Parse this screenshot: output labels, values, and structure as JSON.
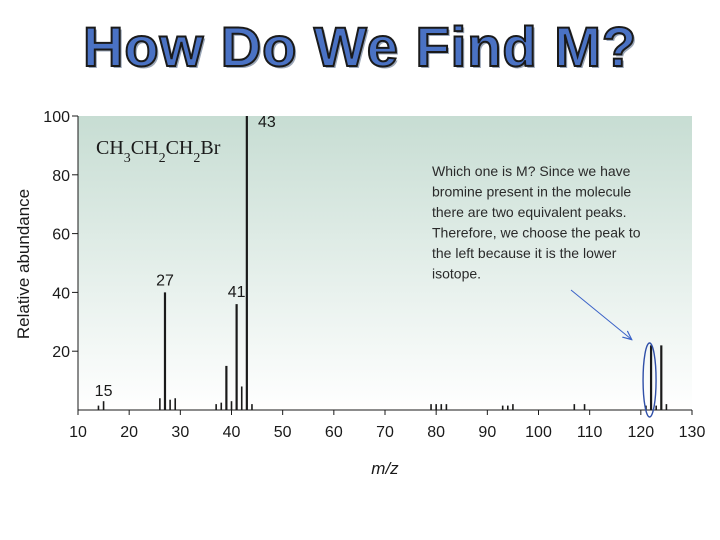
{
  "slide": {
    "title": "How Do We Find M?"
  },
  "colors": {
    "title": "#4a72c4",
    "plot_bg_top": "#c7ddd3",
    "plot_bg_bottom": "#ffffff",
    "bars": "#1a1a1a",
    "arrow": "#3a62c8",
    "highlight_ellipse": "#2f4fa8"
  },
  "chart_data": {
    "type": "bar",
    "title": "",
    "xlabel": "m/z",
    "ylabel": "Relative abundance",
    "xlim": [
      10,
      130
    ],
    "ylim": [
      0,
      100
    ],
    "xticks": [
      10,
      20,
      30,
      40,
      50,
      60,
      70,
      80,
      90,
      100,
      110,
      120,
      130
    ],
    "yticks": [
      20,
      40,
      60,
      80,
      100
    ],
    "grid": false,
    "compound_formula": "CH3CH2CH2Br",
    "peaks": [
      {
        "x": 14,
        "y": 1.5
      },
      {
        "x": 15,
        "y": 3
      },
      {
        "x": 26,
        "y": 4
      },
      {
        "x": 27,
        "y": 40
      },
      {
        "x": 28,
        "y": 3.5
      },
      {
        "x": 29,
        "y": 4
      },
      {
        "x": 37,
        "y": 2
      },
      {
        "x": 38,
        "y": 2.5
      },
      {
        "x": 39,
        "y": 15
      },
      {
        "x": 40,
        "y": 3
      },
      {
        "x": 41,
        "y": 36
      },
      {
        "x": 42,
        "y": 8
      },
      {
        "x": 43,
        "y": 100
      },
      {
        "x": 44,
        "y": 2
      },
      {
        "x": 79,
        "y": 2
      },
      {
        "x": 80,
        "y": 2
      },
      {
        "x": 81,
        "y": 2
      },
      {
        "x": 82,
        "y": 2
      },
      {
        "x": 93,
        "y": 1.5
      },
      {
        "x": 94,
        "y": 1.5
      },
      {
        "x": 95,
        "y": 2
      },
      {
        "x": 107,
        "y": 2
      },
      {
        "x": 109,
        "y": 2
      },
      {
        "x": 121,
        "y": 1.5
      },
      {
        "x": 122,
        "y": 22
      },
      {
        "x": 123,
        "y": 1.5
      },
      {
        "x": 124,
        "y": 22
      },
      {
        "x": 125,
        "y": 2
      }
    ],
    "peak_labels": [
      {
        "x": 15,
        "text": "15"
      },
      {
        "x": 27,
        "text": "27"
      },
      {
        "x": 41,
        "text": "41"
      },
      {
        "x": 43,
        "text": "43"
      }
    ],
    "annotation": {
      "lines": [
        "Which one is M? Since we have",
        "bromine present in the molecule",
        "there are two equivalent peaks.",
        "Therefore, we choose the peak to",
        "the left because it is the lower",
        "isotope."
      ],
      "highlighted_peak_x": 122
    }
  }
}
